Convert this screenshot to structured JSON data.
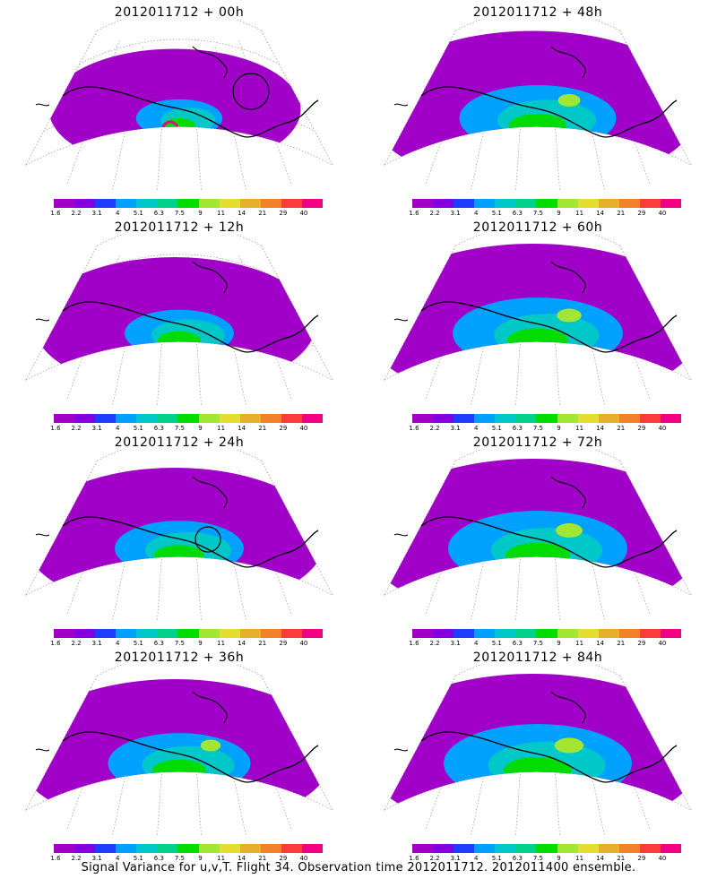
{
  "panels": [
    {
      "title": "2012011712 + 00h",
      "intensity": 0.15,
      "extent": 0.55,
      "circle": true,
      "hotspot": true
    },
    {
      "title": "2012011712 + 48h",
      "intensity": 0.5,
      "extent": 0.95,
      "circle": false,
      "hotspot": false
    },
    {
      "title": "2012011712 + 12h",
      "intensity": 0.3,
      "extent": 0.7,
      "circle": false,
      "hotspot": false
    },
    {
      "title": "2012011712 + 60h",
      "intensity": 0.55,
      "extent": 1.0,
      "circle": false,
      "hotspot": false
    },
    {
      "title": "2012011712 + 24h",
      "intensity": 0.4,
      "extent": 0.8,
      "circle": true,
      "hotspot": false
    },
    {
      "title": "2012011712 + 72h",
      "intensity": 0.6,
      "extent": 1.0,
      "circle": false,
      "hotspot": false
    },
    {
      "title": "2012011712 + 36h",
      "intensity": 0.45,
      "extent": 0.88,
      "circle": false,
      "hotspot": false
    },
    {
      "title": "2012011712 + 84h",
      "intensity": 0.65,
      "extent": 1.0,
      "circle": false,
      "hotspot": false
    }
  ],
  "colorbar": {
    "labels": [
      "1.6",
      "2.2",
      "3.1",
      "4",
      "5.1",
      "6.3",
      "7.5",
      "9",
      "11",
      "14",
      "21",
      "29",
      "40"
    ],
    "colors": [
      "#a000c8",
      "#8200dc",
      "#1e3cff",
      "#00a0ff",
      "#00c8c8",
      "#00d28c",
      "#00dc00",
      "#a0e632",
      "#e6dc32",
      "#e6af2d",
      "#f08228",
      "#fa3c3c",
      "#f00082"
    ]
  },
  "footer": "Signal Variance for u,v,T. Flight 34. Observation time 2012011712. 2012011400 ensemble."
}
